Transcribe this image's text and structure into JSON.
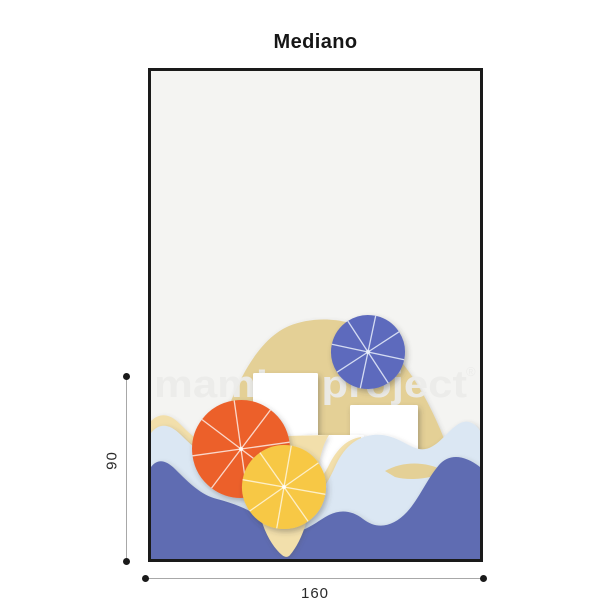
{
  "title": "Mediano",
  "watermark": {
    "text": "mambo project",
    "mark": "®"
  },
  "dimensions": {
    "height": "90",
    "width": "160"
  },
  "colors": {
    "background": "#f4f4f2",
    "frame_border": "#1a1a1a",
    "sand_dome": "#e4d096",
    "sand_light": "#f2dfab",
    "wave_light": "#dbe7f3",
    "wave_dark": "#5e6cb2",
    "towel": "#ffffff",
    "umbrella_orange": "#ec612c",
    "umbrella_yellow": "#f7c844",
    "umbrella_blue": "#5d6bbd",
    "watermark": "#ececea",
    "dimension_line": "#a8a8a8",
    "dimension_dot": "#1a1a1a",
    "title_color": "#161616"
  },
  "illustration": {
    "elements": [
      "sand-dune",
      "beach-towels",
      "light-wave",
      "dark-wave",
      "sand-spit",
      "orange-umbrella",
      "yellow-umbrella",
      "blue-umbrella"
    ]
  }
}
